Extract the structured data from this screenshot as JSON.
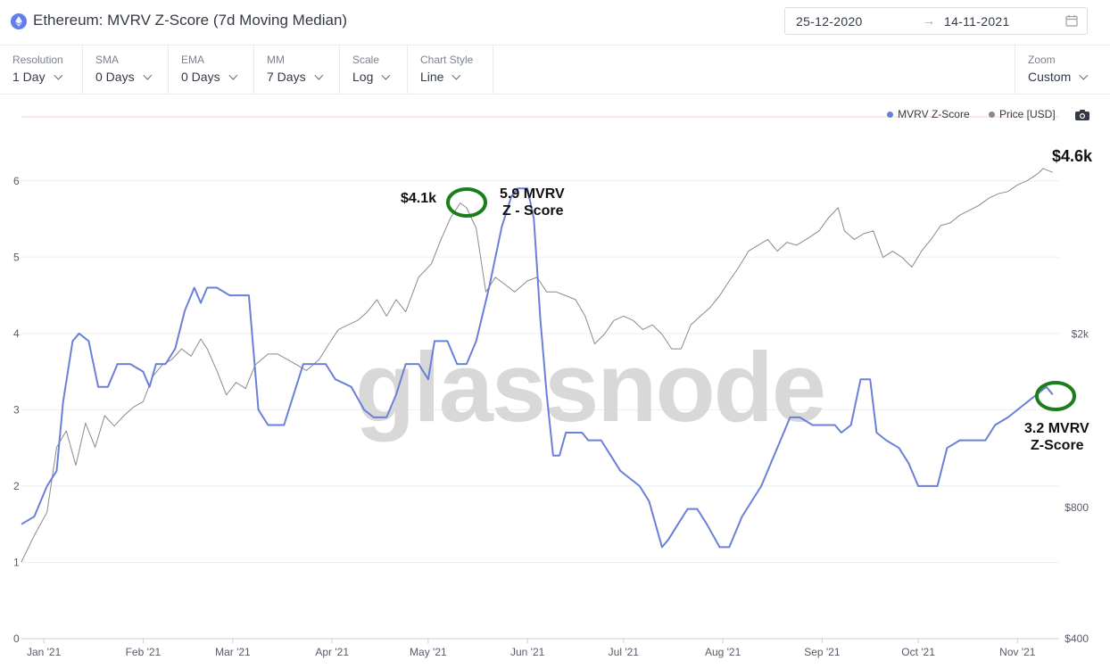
{
  "header": {
    "title": "Ethereum: MVRV Z-Score (7d Moving Median)",
    "date_from": "25-12-2020",
    "date_arrow": "→",
    "date_to": "14-11-2021"
  },
  "toolbar": {
    "resolution": {
      "label": "Resolution",
      "value": "1 Day"
    },
    "sma": {
      "label": "SMA",
      "value": "0 Days"
    },
    "ema": {
      "label": "EMA",
      "value": "0 Days"
    },
    "mm": {
      "label": "MM",
      "value": "7 Days"
    },
    "scale": {
      "label": "Scale",
      "value": "Log"
    },
    "chart_style": {
      "label": "Chart Style",
      "value": "Line"
    },
    "zoom": {
      "label": "Zoom",
      "value": "Custom"
    }
  },
  "legend": {
    "mvrv": {
      "label": "MVRV Z-Score",
      "color": "#6a80d8"
    },
    "price": {
      "label": "Price [USD]",
      "color": "#8a8a8a"
    }
  },
  "watermark": "glassnode",
  "chart_data": {
    "type": "line",
    "x_range": [
      "2020-12-25",
      "2021-11-14"
    ],
    "x_ticks": [
      "Jan '21",
      "Feb '21",
      "Mar '21",
      "Apr '21",
      "May '21",
      "Jun '21",
      "Jul '21",
      "Aug '21",
      "Sep '21",
      "Oct '21",
      "Nov '21"
    ],
    "y_left": {
      "ticks": [
        "0",
        "1",
        "2",
        "3",
        "4",
        "5",
        "6"
      ],
      "range": [
        0,
        6.5
      ]
    },
    "y_right": {
      "scale": "log",
      "ticks": [
        "$400",
        "$800",
        "$2k"
      ],
      "range": [
        400,
        5500
      ]
    },
    "series": [
      {
        "name": "MVRV Z-Score",
        "axis": "left",
        "color": "#6a80d8",
        "points": [
          [
            "2020-12-25",
            1.5
          ],
          [
            "2020-12-29",
            1.6
          ],
          [
            "2021-01-02",
            2.0
          ],
          [
            "2021-01-05",
            2.2
          ],
          [
            "2021-01-07",
            3.1
          ],
          [
            "2021-01-10",
            3.9
          ],
          [
            "2021-01-12",
            4.0
          ],
          [
            "2021-01-15",
            3.9
          ],
          [
            "2021-01-18",
            3.3
          ],
          [
            "2021-01-21",
            3.3
          ],
          [
            "2021-01-24",
            3.6
          ],
          [
            "2021-01-28",
            3.6
          ],
          [
            "2021-02-01",
            3.5
          ],
          [
            "2021-02-03",
            3.3
          ],
          [
            "2021-02-05",
            3.6
          ],
          [
            "2021-02-08",
            3.6
          ],
          [
            "2021-02-11",
            3.8
          ],
          [
            "2021-02-14",
            4.3
          ],
          [
            "2021-02-17",
            4.6
          ],
          [
            "2021-02-19",
            4.4
          ],
          [
            "2021-02-21",
            4.6
          ],
          [
            "2021-02-24",
            4.6
          ],
          [
            "2021-02-28",
            4.5
          ],
          [
            "2021-03-04",
            4.5
          ],
          [
            "2021-03-06",
            4.5
          ],
          [
            "2021-03-09",
            3.0
          ],
          [
            "2021-03-12",
            2.8
          ],
          [
            "2021-03-17",
            2.8
          ],
          [
            "2021-03-20",
            3.2
          ],
          [
            "2021-03-23",
            3.6
          ],
          [
            "2021-03-27",
            3.6
          ],
          [
            "2021-03-30",
            3.6
          ],
          [
            "2021-04-02",
            3.4
          ],
          [
            "2021-04-07",
            3.3
          ],
          [
            "2021-04-11",
            3.0
          ],
          [
            "2021-04-14",
            2.9
          ],
          [
            "2021-04-18",
            2.9
          ],
          [
            "2021-04-21",
            3.2
          ],
          [
            "2021-04-24",
            3.6
          ],
          [
            "2021-04-28",
            3.6
          ],
          [
            "2021-05-01",
            3.4
          ],
          [
            "2021-05-03",
            3.9
          ],
          [
            "2021-05-07",
            3.9
          ],
          [
            "2021-05-10",
            3.6
          ],
          [
            "2021-05-13",
            3.6
          ],
          [
            "2021-05-16",
            3.9
          ],
          [
            "2021-05-20",
            4.6
          ],
          [
            "2021-05-24",
            5.4
          ],
          [
            "2021-05-27",
            5.8
          ],
          [
            "2021-05-29",
            5.9
          ],
          [
            "2021-06-01",
            5.9
          ],
          [
            "2021-06-03",
            5.5
          ],
          [
            "2021-06-05",
            4.2
          ],
          [
            "2021-06-07",
            3.2
          ],
          [
            "2021-06-09",
            2.4
          ],
          [
            "2021-06-11",
            2.4
          ],
          [
            "2021-06-13",
            2.7
          ],
          [
            "2021-06-16",
            2.7
          ],
          [
            "2021-06-18",
            2.7
          ],
          [
            "2021-06-20",
            2.6
          ],
          [
            "2021-06-24",
            2.6
          ],
          [
            "2021-06-27",
            2.4
          ],
          [
            "2021-06-30",
            2.2
          ],
          [
            "2021-07-03",
            2.1
          ],
          [
            "2021-07-06",
            2.0
          ],
          [
            "2021-07-09",
            1.8
          ],
          [
            "2021-07-11",
            1.5
          ],
          [
            "2021-07-13",
            1.2
          ],
          [
            "2021-07-15",
            1.3
          ],
          [
            "2021-07-18",
            1.5
          ],
          [
            "2021-07-21",
            1.7
          ],
          [
            "2021-07-24",
            1.7
          ],
          [
            "2021-07-27",
            1.5
          ],
          [
            "2021-07-31",
            1.2
          ],
          [
            "2021-08-03",
            1.2
          ],
          [
            "2021-08-07",
            1.6
          ],
          [
            "2021-08-10",
            1.8
          ],
          [
            "2021-08-13",
            2.0
          ],
          [
            "2021-08-16",
            2.3
          ],
          [
            "2021-08-19",
            2.6
          ],
          [
            "2021-08-22",
            2.9
          ],
          [
            "2021-08-25",
            2.9
          ],
          [
            "2021-08-29",
            2.8
          ],
          [
            "2021-09-02",
            2.8
          ],
          [
            "2021-09-05",
            2.8
          ],
          [
            "2021-09-07",
            2.7
          ],
          [
            "2021-09-10",
            2.8
          ],
          [
            "2021-09-13",
            3.4
          ],
          [
            "2021-09-16",
            3.4
          ],
          [
            "2021-09-18",
            2.7
          ],
          [
            "2021-09-21",
            2.6
          ],
          [
            "2021-09-25",
            2.5
          ],
          [
            "2021-09-28",
            2.3
          ],
          [
            "2021-10-01",
            2.0
          ],
          [
            "2021-10-04",
            2.0
          ],
          [
            "2021-10-07",
            2.0
          ],
          [
            "2021-10-10",
            2.5
          ],
          [
            "2021-10-14",
            2.6
          ],
          [
            "2021-10-18",
            2.6
          ],
          [
            "2021-10-22",
            2.6
          ],
          [
            "2021-10-25",
            2.8
          ],
          [
            "2021-10-29",
            2.9
          ],
          [
            "2021-11-01",
            3.0
          ],
          [
            "2021-11-04",
            3.1
          ],
          [
            "2021-11-07",
            3.2
          ],
          [
            "2021-11-10",
            3.3
          ],
          [
            "2021-11-12",
            3.2
          ]
        ]
      },
      {
        "name": "Price [USD]",
        "axis": "right",
        "color": "#8a8a8a",
        "points": [
          [
            "2020-12-25",
            600
          ],
          [
            "2020-12-29",
            690
          ],
          [
            "2021-01-02",
            780
          ],
          [
            "2021-01-05",
            1100
          ],
          [
            "2021-01-08",
            1200
          ],
          [
            "2021-01-11",
            1000
          ],
          [
            "2021-01-14",
            1250
          ],
          [
            "2021-01-17",
            1100
          ],
          [
            "2021-01-20",
            1300
          ],
          [
            "2021-01-23",
            1230
          ],
          [
            "2021-01-26",
            1300
          ],
          [
            "2021-01-29",
            1360
          ],
          [
            "2021-02-01",
            1400
          ],
          [
            "2021-02-04",
            1600
          ],
          [
            "2021-02-07",
            1700
          ],
          [
            "2021-02-10",
            1750
          ],
          [
            "2021-02-13",
            1850
          ],
          [
            "2021-02-16",
            1780
          ],
          [
            "2021-02-19",
            1950
          ],
          [
            "2021-02-21",
            1850
          ],
          [
            "2021-02-24",
            1650
          ],
          [
            "2021-02-27",
            1450
          ],
          [
            "2021-03-02",
            1550
          ],
          [
            "2021-03-05",
            1500
          ],
          [
            "2021-03-08",
            1700
          ],
          [
            "2021-03-12",
            1800
          ],
          [
            "2021-03-15",
            1800
          ],
          [
            "2021-03-18",
            1750
          ],
          [
            "2021-03-21",
            1700
          ],
          [
            "2021-03-24",
            1650
          ],
          [
            "2021-03-28",
            1750
          ],
          [
            "2021-03-31",
            1900
          ],
          [
            "2021-04-03",
            2050
          ],
          [
            "2021-04-06",
            2100
          ],
          [
            "2021-04-09",
            2150
          ],
          [
            "2021-04-12",
            2250
          ],
          [
            "2021-04-15",
            2400
          ],
          [
            "2021-04-18",
            2200
          ],
          [
            "2021-04-21",
            2400
          ],
          [
            "2021-04-24",
            2250
          ],
          [
            "2021-04-28",
            2700
          ],
          [
            "2021-05-02",
            2900
          ],
          [
            "2021-05-05",
            3300
          ],
          [
            "2021-05-08",
            3700
          ],
          [
            "2021-05-11",
            4000
          ],
          [
            "2021-05-13",
            3900
          ],
          [
            "2021-05-16",
            3500
          ],
          [
            "2021-05-19",
            2500
          ],
          [
            "2021-05-22",
            2700
          ],
          [
            "2021-05-25",
            2600
          ],
          [
            "2021-05-28",
            2500
          ],
          [
            "2021-06-01",
            2650
          ],
          [
            "2021-06-04",
            2700
          ],
          [
            "2021-06-07",
            2500
          ],
          [
            "2021-06-10",
            2500
          ],
          [
            "2021-06-13",
            2450
          ],
          [
            "2021-06-16",
            2400
          ],
          [
            "2021-06-19",
            2200
          ],
          [
            "2021-06-22",
            1900
          ],
          [
            "2021-06-25",
            2000
          ],
          [
            "2021-06-28",
            2150
          ],
          [
            "2021-07-01",
            2200
          ],
          [
            "2021-07-04",
            2150
          ],
          [
            "2021-07-07",
            2050
          ],
          [
            "2021-07-10",
            2100
          ],
          [
            "2021-07-13",
            2000
          ],
          [
            "2021-07-16",
            1850
          ],
          [
            "2021-07-19",
            1850
          ],
          [
            "2021-07-22",
            2100
          ],
          [
            "2021-07-25",
            2200
          ],
          [
            "2021-07-28",
            2300
          ],
          [
            "2021-07-31",
            2450
          ],
          [
            "2021-08-03",
            2650
          ],
          [
            "2021-08-06",
            2850
          ],
          [
            "2021-08-09",
            3100
          ],
          [
            "2021-08-12",
            3200
          ],
          [
            "2021-08-15",
            3300
          ],
          [
            "2021-08-18",
            3100
          ],
          [
            "2021-08-21",
            3250
          ],
          [
            "2021-08-24",
            3200
          ],
          [
            "2021-08-27",
            3300
          ],
          [
            "2021-08-31",
            3450
          ],
          [
            "2021-09-03",
            3700
          ],
          [
            "2021-09-06",
            3900
          ],
          [
            "2021-09-08",
            3450
          ],
          [
            "2021-09-11",
            3300
          ],
          [
            "2021-09-14",
            3400
          ],
          [
            "2021-09-17",
            3450
          ],
          [
            "2021-09-20",
            3000
          ],
          [
            "2021-09-23",
            3100
          ],
          [
            "2021-09-26",
            3000
          ],
          [
            "2021-09-29",
            2850
          ],
          [
            "2021-10-02",
            3100
          ],
          [
            "2021-10-05",
            3300
          ],
          [
            "2021-10-08",
            3550
          ],
          [
            "2021-10-11",
            3600
          ],
          [
            "2021-10-14",
            3750
          ],
          [
            "2021-10-17",
            3850
          ],
          [
            "2021-10-20",
            3950
          ],
          [
            "2021-10-23",
            4100
          ],
          [
            "2021-10-26",
            4200
          ],
          [
            "2021-10-29",
            4250
          ],
          [
            "2021-11-01",
            4400
          ],
          [
            "2021-11-04",
            4500
          ],
          [
            "2021-11-07",
            4650
          ],
          [
            "2021-11-09",
            4800
          ],
          [
            "2021-11-12",
            4700
          ]
        ]
      }
    ],
    "annotations": [
      {
        "text": "$4.1k",
        "kind": "price-label"
      },
      {
        "text": "5.9 MVRV",
        "kind": "label"
      },
      {
        "text": "Z - Score",
        "kind": "label"
      },
      {
        "text": "3.2 MVRV",
        "kind": "label"
      },
      {
        "text": "Z-Score",
        "kind": "label"
      },
      {
        "text": "$4.6k",
        "kind": "price-label"
      }
    ]
  }
}
